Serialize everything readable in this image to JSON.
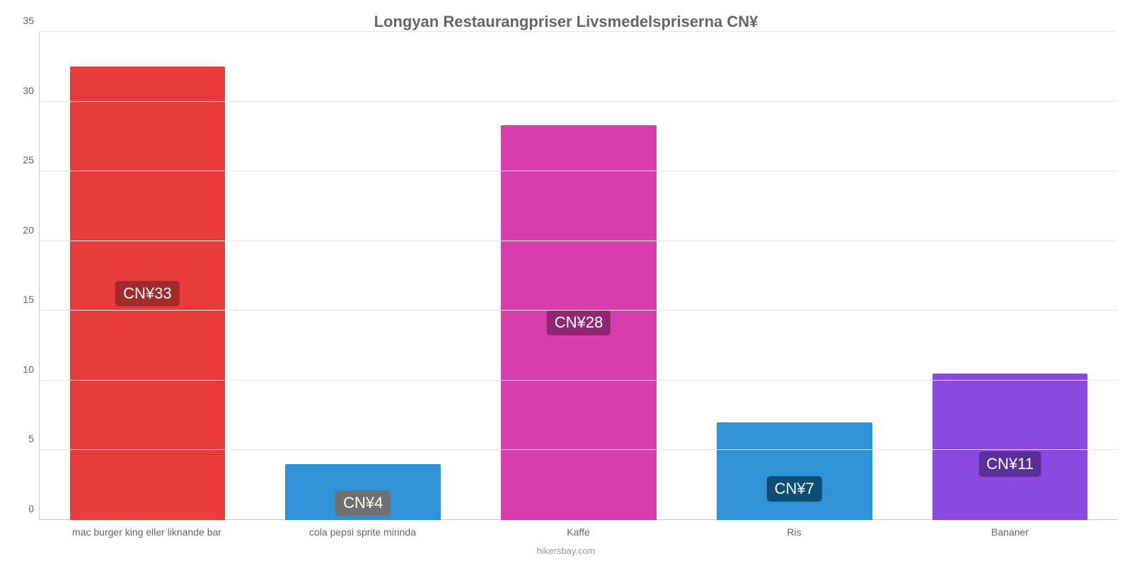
{
  "chart": {
    "type": "bar",
    "title": "Longyan Restaurangpriser Livsmedelspriserna CN¥",
    "title_fontsize": 22,
    "title_color": "#666666",
    "attribution": "hikersbay.com",
    "attribution_color": "#999999",
    "background_color": "#ffffff",
    "grid_color": "#e8e8e8",
    "axis_color": "#c8c8c8",
    "tick_label_color": "#666666",
    "tick_label_fontsize": 14,
    "ylim": [
      0,
      35
    ],
    "ytick_step": 5,
    "yticks": [
      0,
      5,
      10,
      15,
      20,
      25,
      30,
      35
    ],
    "bar_width_pct": 72,
    "value_label_fontsize": 22,
    "value_label_text_color": "#ffffff",
    "categories": [
      "mac burger king eller liknande bar",
      "cola pepsi sprite mirinda",
      "Kaffe",
      "Ris",
      "Bananer"
    ],
    "values": [
      32.5,
      4,
      28.3,
      7,
      10.5
    ],
    "display_values": [
      "CN¥33",
      "CN¥4",
      "CN¥28",
      "CN¥7",
      "CN¥11"
    ],
    "bar_colors": [
      "#e73b3c",
      "#2f92d7",
      "#d73eab",
      "#2f92d7",
      "#8b49e0"
    ],
    "badge_colors": [
      "#a12a2a",
      "#0b4f78",
      "#8e2872",
      "#0b4f78",
      "#5b2f99"
    ],
    "badge_override_color_index": {
      "1": "#6f6f6f"
    },
    "badge_vertical_pct": [
      50,
      30,
      50,
      32,
      38
    ]
  }
}
